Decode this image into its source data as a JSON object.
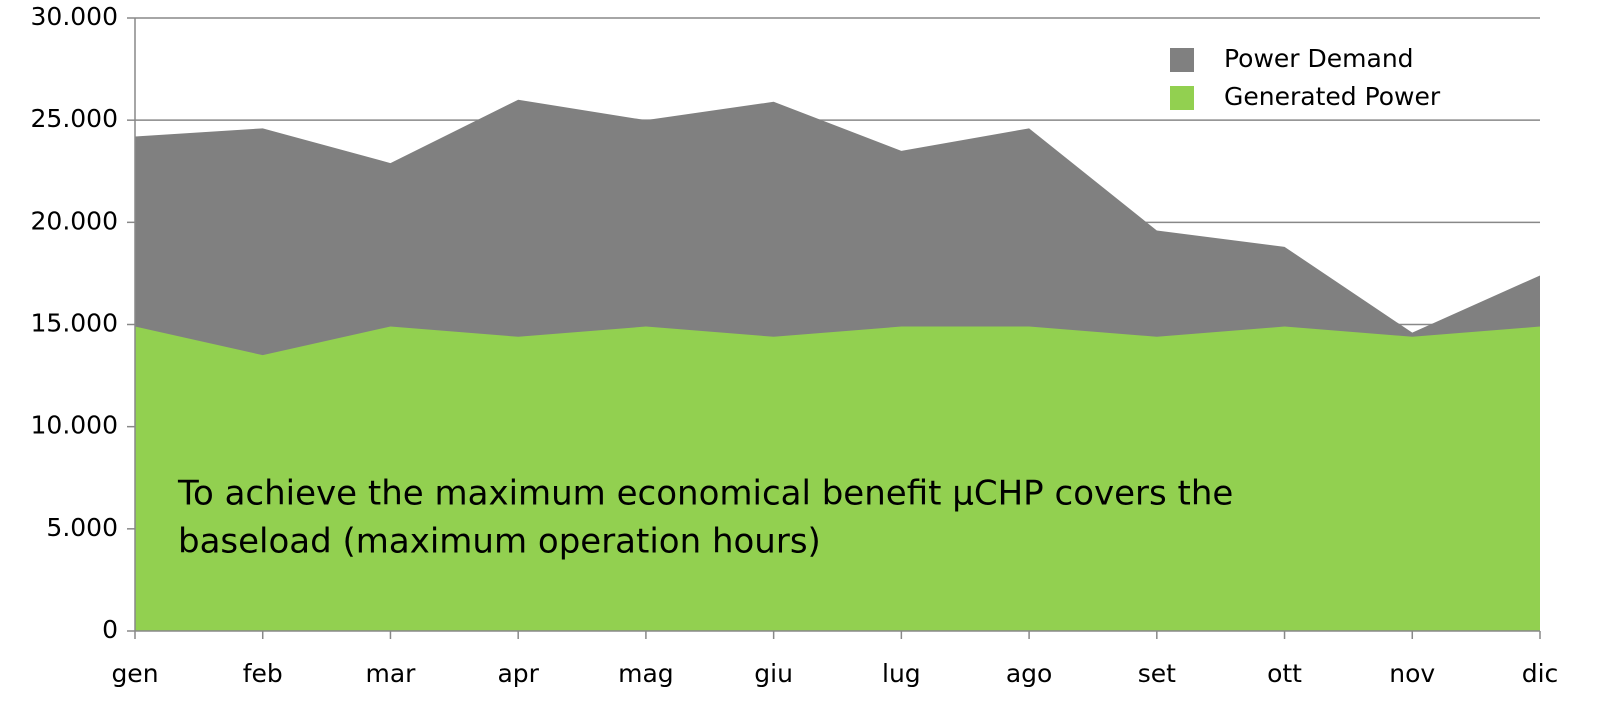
{
  "chart_data": {
    "type": "area",
    "categories": [
      "gen",
      "feb",
      "mar",
      "apr",
      "mag",
      "giu",
      "lug",
      "ago",
      "set",
      "ott",
      "nov",
      "dic"
    ],
    "series": [
      {
        "name": "Power Demand",
        "color": "#808080",
        "values": [
          24200,
          24600,
          22900,
          26000,
          25000,
          25900,
          23500,
          24600,
          19600,
          18800,
          14600,
          17400
        ]
      },
      {
        "name": "Generated Power",
        "color": "#92d050",
        "values": [
          14900,
          13500,
          14900,
          14400,
          14900,
          14400,
          14900,
          14900,
          14400,
          14900,
          14400,
          14900
        ]
      }
    ],
    "ylim": [
      0,
      30000
    ],
    "yticks": [
      0,
      {
        "value": 5000,
        "label": "5.000"
      },
      {
        "value": 10000,
        "label": "10.000"
      },
      {
        "value": 15000,
        "label": "15.000"
      },
      {
        "value": 20000,
        "label": "20.000"
      },
      {
        "value": 25000,
        "label": "25.000"
      },
      {
        "value": 30000,
        "label": "30.000"
      }
    ],
    "grid": true,
    "legend": "top-right",
    "annotation": [
      "To achieve the maximum economical benefit μCHP covers the",
      "baseload (maximum operation hours)"
    ]
  }
}
